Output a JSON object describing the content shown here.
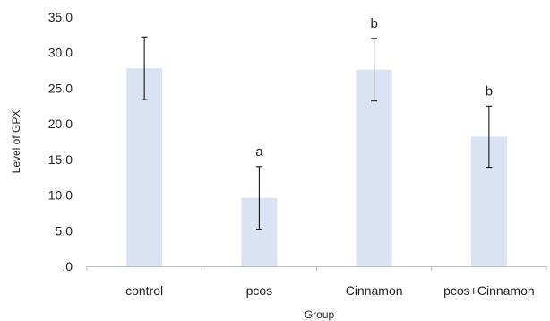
{
  "chart_data": {
    "type": "bar",
    "title": "",
    "xlabel": "Group",
    "ylabel": "Level of GPX",
    "categories": [
      "control",
      "pcos",
      "Cinnamon",
      "pcos+Cinnamon"
    ],
    "values": [
      27.8,
      9.6,
      27.6,
      18.2
    ],
    "error": [
      4.4,
      4.4,
      4.4,
      4.3
    ],
    "significance": [
      "",
      "a",
      "b",
      "b"
    ],
    "ylim": [
      0,
      35
    ],
    "yticks": [
      ".0",
      "5.0",
      "10.0",
      "15.0",
      "20.0",
      "25.0",
      "30.0",
      "35.0"
    ],
    "grid": false,
    "bar_color": "#dae3f3"
  }
}
